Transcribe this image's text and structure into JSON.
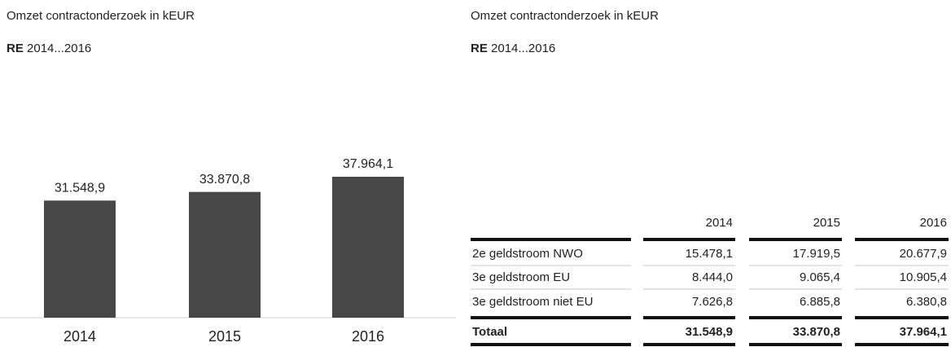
{
  "chart_data": {
    "type": "bar",
    "title": "Omzet contractonderzoek in kEUR",
    "subtitle_bold": "RE",
    "subtitle": "2014...2016",
    "categories": [
      "2014",
      "2015",
      "2016"
    ],
    "values": [
      31548.9,
      33870.8,
      37964.1
    ],
    "value_labels": [
      "31.548,9",
      "33.870,8",
      "37.964,1"
    ],
    "color": "#474747"
  },
  "table": {
    "title": "Omzet contractonderzoek in kEUR",
    "subtitle_bold": "RE",
    "subtitle": "2014...2016",
    "header": [
      "2014",
      "2015",
      "2016"
    ],
    "rows": [
      {
        "label": "2e geldstroom NWO",
        "values": [
          "15.478,1",
          "17.919,5",
          "20.677,9"
        ]
      },
      {
        "label": "3e geldstroom EU",
        "values": [
          "8.444,0",
          "9.065,4",
          "10.905,4"
        ]
      },
      {
        "label": "3e geldstroom niet EU",
        "values": [
          "7.626,8",
          "6.885,8",
          "6.380,8"
        ]
      }
    ],
    "total": {
      "label": "Totaal",
      "values": [
        "31.548,9",
        "33.870,8",
        "37.964,1"
      ]
    }
  }
}
